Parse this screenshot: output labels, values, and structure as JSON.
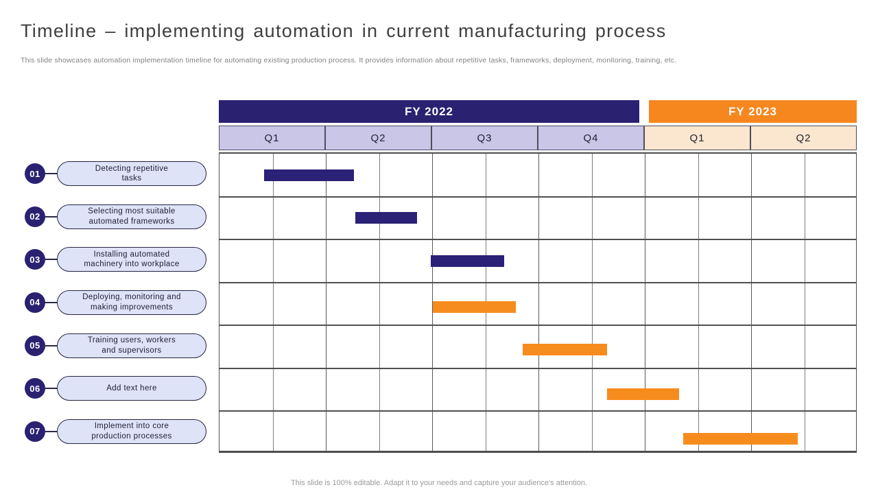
{
  "slide": {
    "title": "Timeline – implementing automation in current manufacturing process",
    "subtitle": "This slide showcases automation implementation timeline for automating existing production process. It provides information about repetitive tasks, frameworks, deployment, monitoring, training, etc.",
    "footer": "This slide is 100% editable. Adapt it to your needs and capture your audience's attention."
  },
  "colors": {
    "indigo": "#2B2171",
    "orange_header": "#F6871F",
    "orange_bar": "#F78C1E",
    "lavender_quarter_bg": "#C9C6E8",
    "peach_quarter_bg": "#FBE6CF",
    "pill_fill": "#DFE3F8",
    "pill_border": "#23233F",
    "grid_line_dark": "#4D4D4D",
    "grid_line_light": "#7D7D7D",
    "title_text": "#3F3F3F",
    "muted_text": "#808080"
  },
  "chart_data": {
    "type": "gantt",
    "x_axis": {
      "groups": [
        {
          "label": "FY 2022",
          "quarters": [
            "Q1",
            "Q2",
            "Q3",
            "Q4"
          ],
          "header_color": "#2B2171",
          "quarter_color": "#C9C6E8"
        },
        {
          "label": "FY 2023",
          "quarters": [
            "Q1",
            "Q2"
          ],
          "header_color": "#F6871F",
          "quarter_color": "#FBE6CF"
        }
      ],
      "total_quarters": 6,
      "gridline_subdivisions_per_quarter": 2
    },
    "tasks": [
      {
        "num": "01",
        "label": "Detecting repetitive tasks",
        "label_lines": [
          "Detecting repetitive",
          "tasks"
        ],
        "start_quarter": 0.42,
        "end_quarter": 1.27,
        "color": "#2B2176"
      },
      {
        "num": "02",
        "label": "Selecting most suitable automated frameworks",
        "label_lines": [
          "Selecting most suitable",
          "automated frameworks"
        ],
        "start_quarter": 1.28,
        "end_quarter": 1.86,
        "color": "#2B2176"
      },
      {
        "num": "03",
        "label": "Installing automated machinery into workplace",
        "label_lines": [
          "Installing automated",
          "machinery into workplace"
        ],
        "start_quarter": 1.99,
        "end_quarter": 2.68,
        "color": "#2B2176"
      },
      {
        "num": "04",
        "label": "Deploying, monitoring and making improvements",
        "label_lines": [
          "Deploying, monitoring and",
          "making improvements"
        ],
        "start_quarter": 2.01,
        "end_quarter": 2.79,
        "color": "#F78C1E"
      },
      {
        "num": "05",
        "label": "Training users, workers and supervisors",
        "label_lines": [
          "Training users, workers",
          "and supervisors"
        ],
        "start_quarter": 2.86,
        "end_quarter": 3.65,
        "color": "#F78C1E"
      },
      {
        "num": "06",
        "label": "Add text here",
        "label_lines": [
          "Add text here"
        ],
        "start_quarter": 3.65,
        "end_quarter": 4.33,
        "color": "#F78C1E"
      },
      {
        "num": "07",
        "label": "Implement into core production processes",
        "label_lines": [
          "Implement into core",
          "production processes"
        ],
        "start_quarter": 4.37,
        "end_quarter": 5.45,
        "color": "#F78C1E"
      }
    ]
  }
}
